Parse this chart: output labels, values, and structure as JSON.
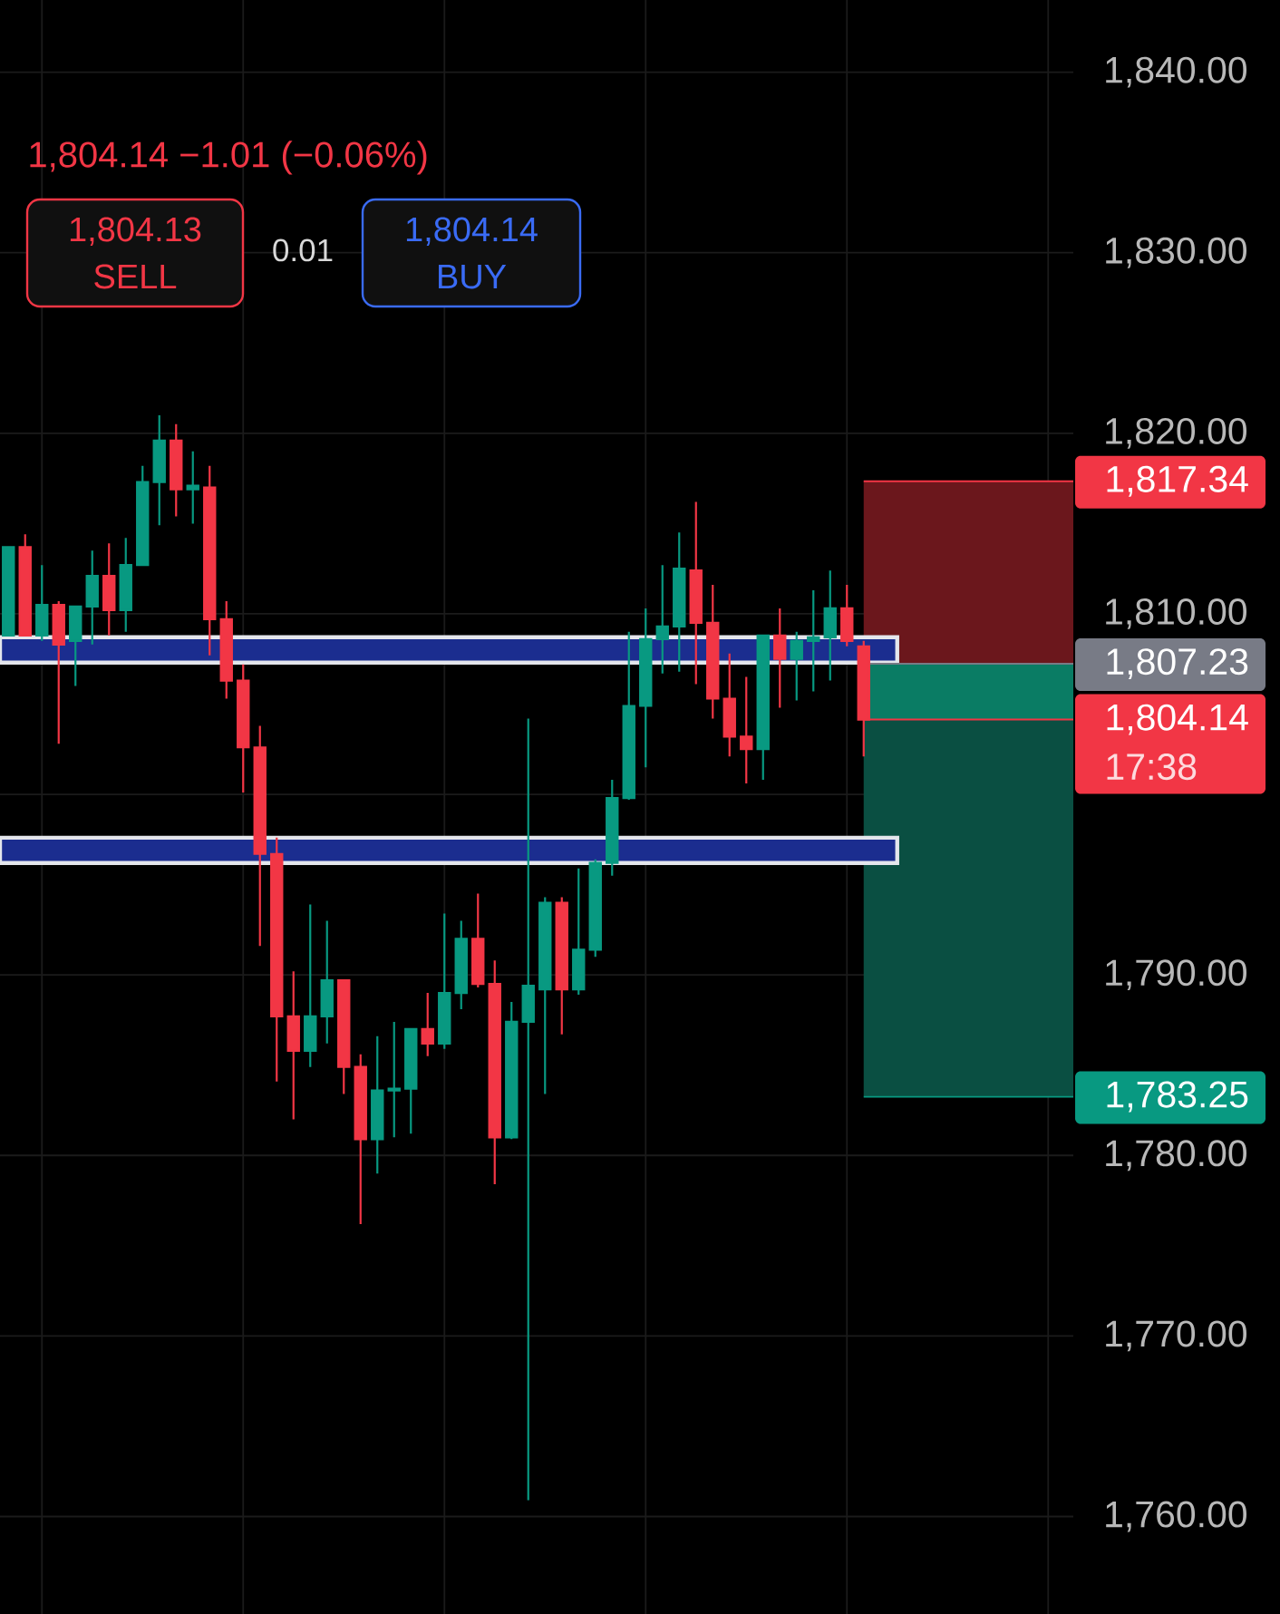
{
  "chart_data": {
    "type": "candlestick",
    "categories": [
      null,
      null,
      null,
      null,
      null,
      null,
      null,
      null,
      null,
      null,
      null,
      null,
      null,
      null,
      null,
      null,
      null,
      null,
      null,
      null,
      null,
      null,
      null,
      null,
      null,
      null,
      null,
      null,
      null,
      null,
      null,
      null,
      null,
      null,
      null,
      null,
      null,
      null,
      null,
      null,
      null,
      null,
      null,
      null,
      null,
      null,
      null,
      null,
      null,
      null,
      null,
      null,
      null,
      null,
      null,
      null,
      null,
      null,
      null,
      null,
      null,
      null,
      null,
      null
    ],
    "ohlc": [
      [
        1808.8,
        1813.7,
        1808.8,
        1813.7
      ],
      [
        1813.7,
        1814.4,
        1808.8,
        1808.8
      ],
      [
        1808.8,
        1812.7,
        1808.5,
        1810.5
      ],
      [
        1810.5,
        1810.7,
        1802.8,
        1808.3
      ],
      [
        1808.5,
        1810.4,
        1806.0,
        1810.4
      ],
      [
        1810.4,
        1813.5,
        1808.3,
        1812.1
      ],
      [
        1812.1,
        1813.9,
        1808.8,
        1810.2
      ],
      [
        1810.2,
        1814.2,
        1809.0,
        1812.7
      ],
      [
        1812.7,
        1818.2,
        1812.7,
        1817.3
      ],
      [
        1817.3,
        1821.0,
        1814.9,
        1819.6
      ],
      [
        1819.6,
        1820.5,
        1815.4,
        1816.9
      ],
      [
        1816.9,
        1819.0,
        1815.0,
        1817.1
      ],
      [
        1817.0,
        1818.2,
        1807.7,
        1809.7
      ],
      [
        1809.7,
        1810.7,
        1805.3,
        1806.3
      ],
      [
        1806.3,
        1807.2,
        1800.1,
        1802.6
      ],
      [
        1802.6,
        1803.8,
        1791.6,
        1796.7
      ],
      [
        1796.7,
        1797.6,
        1784.1,
        1787.7
      ],
      [
        1787.7,
        1790.2,
        1782.0,
        1785.8
      ],
      [
        1785.8,
        1793.9,
        1784.9,
        1787.7
      ],
      [
        1787.7,
        1793.0,
        1786.2,
        1789.7
      ],
      [
        1789.7,
        1789.7,
        1783.4,
        1784.9
      ],
      [
        1784.9,
        1785.6,
        1776.2,
        1780.9
      ],
      [
        1780.9,
        1786.6,
        1779.0,
        1783.6
      ],
      [
        1783.6,
        1787.4,
        1781.0,
        1783.7
      ],
      [
        1783.7,
        1787.0,
        1781.2,
        1787.0
      ],
      [
        1787.0,
        1789.0,
        1785.5,
        1786.2
      ],
      [
        1786.2,
        1793.4,
        1785.9,
        1789.0
      ],
      [
        1789.0,
        1793.0,
        1788.1,
        1792.0
      ],
      [
        1792.0,
        1794.5,
        1789.3,
        1789.5
      ],
      [
        1789.5,
        1790.8,
        1778.4,
        1781.0
      ],
      [
        1781.0,
        1788.5,
        1780.9,
        1787.4
      ],
      [
        1787.4,
        1804.2,
        1760.9,
        1789.4
      ],
      [
        1789.2,
        1794.3,
        1783.4,
        1794.0
      ],
      [
        1794.0,
        1794.3,
        1786.7,
        1789.2
      ],
      [
        1789.2,
        1795.9,
        1788.9,
        1791.4
      ],
      [
        1791.4,
        1796.4,
        1791.0,
        1796.2
      ],
      [
        1796.2,
        1800.8,
        1795.5,
        1799.8
      ],
      [
        1799.8,
        1809.0,
        1799.7,
        1804.9
      ],
      [
        1804.9,
        1810.3,
        1801.5,
        1808.6
      ],
      [
        1808.6,
        1812.7,
        1806.7,
        1809.3
      ],
      [
        1809.3,
        1814.5,
        1806.8,
        1812.5
      ],
      [
        1812.4,
        1816.2,
        1806.1,
        1809.5
      ],
      [
        1809.5,
        1811.6,
        1804.2,
        1805.3
      ],
      [
        1805.3,
        1807.8,
        1802.1,
        1803.2
      ],
      [
        1803.2,
        1806.5,
        1800.6,
        1802.5
      ],
      [
        1802.5,
        1808.8,
        1800.8,
        1808.8
      ],
      [
        1808.8,
        1810.3,
        1804.8,
        1807.5
      ],
      [
        1807.5,
        1809.0,
        1805.2,
        1808.5
      ],
      [
        1808.5,
        1811.3,
        1805.7,
        1808.7
      ],
      [
        1808.7,
        1812.4,
        1806.3,
        1810.3
      ],
      [
        1810.3,
        1811.6,
        1808.2,
        1808.5
      ],
      [
        1808.2,
        1808.5,
        1802.1,
        1804.14
      ],
      null,
      null,
      null,
      null,
      null,
      null,
      null,
      null,
      null,
      null,
      null,
      null
    ],
    "colors": [
      "#089981",
      "#f23645",
      "#089981",
      "#f23645",
      "#089981",
      "#089981",
      "#f23645",
      "#089981",
      "#089981",
      "#089981",
      "#f23645",
      "#089981",
      "#f23645",
      "#f23645",
      "#f23645",
      "#f23645",
      "#f23645",
      "#f23645",
      "#089981",
      "#089981",
      "#f23645",
      "#f23645",
      "#089981",
      "#089981",
      "#089981",
      "#f23645",
      "#089981",
      "#089981",
      "#f23645",
      "#f23645",
      "#089981",
      "#089981",
      "#089981",
      "#f23645",
      "#089981",
      "#089981",
      "#089981",
      "#089981",
      "#089981",
      "#089981",
      "#089981",
      "#f23645",
      "#f23645",
      "#f23645",
      "#f23645",
      "#089981",
      "#f23645",
      "#089981",
      "#089981",
      "#089981",
      "#f23645",
      "#f23645",
      null,
      null,
      null,
      null,
      null,
      null,
      null,
      null,
      null,
      null,
      null,
      null
    ],
    "ylim": [
      1754.6,
      1844.0
    ],
    "yticks": [
      {
        "value": 1760,
        "label": "1,760.00"
      },
      {
        "value": 1770,
        "label": "1,770.00"
      },
      {
        "value": 1780,
        "label": "1,780.00"
      },
      {
        "value": 1790,
        "label": "1,790.00"
      },
      {
        "value": 1800,
        "label": null
      },
      {
        "value": 1810,
        "label": "1,810.00"
      },
      {
        "value": 1820,
        "label": "1,820.00"
      },
      {
        "value": 1830,
        "label": "1,830.00"
      },
      {
        "value": 1840,
        "label": "1,840.00"
      }
    ],
    "tick_labels": "y",
    "grid": true,
    "bands": [
      {
        "axis": "y",
        "from": 1807.23,
        "to": 1817.34,
        "color": "#6b171c"
      },
      {
        "axis": "y",
        "from": 1804.14,
        "to": 1807.23,
        "color": "#0a7c64"
      },
      {
        "axis": "y",
        "from": 1783.25,
        "to": 1804.14,
        "color": "#0a4f42"
      },
      {
        "axis": "y",
        "from": 1807.3,
        "to": 1808.7,
        "color": "#1b2d8f"
      },
      {
        "axis": "y",
        "from": 1796.2,
        "to": 1797.6,
        "color": "#1b2d8f"
      }
    ],
    "ref_lines": [
      {
        "axis": "y",
        "value": 1817.34,
        "label": "1,817.34",
        "color": "#f23645"
      },
      {
        "axis": "y",
        "value": 1807.23,
        "label": "1,807.23",
        "color": "#787b86"
      },
      {
        "axis": "y",
        "value": 1804.14,
        "label": "1,804.14",
        "color": "#f23645"
      },
      {
        "axis": "y",
        "value": 1783.25,
        "label": "1,783.25",
        "color": "#089981"
      }
    ],
    "annotations": [
      "1,804.14 −1.01 (−0.06%)",
      "1,804.13",
      "SELL",
      "0.01",
      "1,804.14",
      "BUY",
      "17:38"
    ]
  }
}
